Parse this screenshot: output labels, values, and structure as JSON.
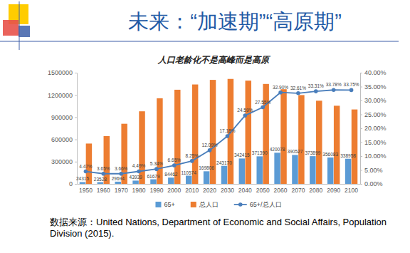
{
  "header": {
    "title": "未来：“加速期”“高原期”"
  },
  "chart_data": {
    "type": "bar",
    "title": "人口老龄化不是高峰而是高原",
    "categories": [
      "1950",
      "1960",
      "1970",
      "1980",
      "1990",
      "2000",
      "2010",
      "2020",
      "2030",
      "2040",
      "2050",
      "2060",
      "2070",
      "2080",
      "2090",
      "2100"
    ],
    "series": [
      {
        "name": "65+",
        "type": "bar",
        "color": "#5b9bd5",
        "data_labels": true,
        "values": [
          24315,
          23528,
          29694,
          43939,
          61679,
          84462,
          110574,
          169806,
          243170,
          342415,
          371390,
          420078,
          390527,
          373899,
          356083,
          338958
        ]
      },
      {
        "name": "总人口",
        "type": "bar",
        "color": "#ed7d31",
        "values": [
          544000,
          645000,
          811000,
          979000,
          1155000,
          1270000,
          1341000,
          1403000,
          1416000,
          1393000,
          1348000,
          1277000,
          1198000,
          1122000,
          1054000,
          1004000
        ]
      },
      {
        "name": "65+/总人口",
        "type": "line",
        "axis": "y2",
        "color": "#4a7ebb",
        "marker": "circle",
        "line_style": "solid",
        "data_labels": true,
        "values": [
          4.47,
          3.65,
          3.66,
          4.49,
          5.34,
          6.65,
          8.25,
          12.09,
          17.18,
          24.59,
          27.55,
          32.9,
          32.61,
          33.31,
          33.78,
          33.75
        ],
        "value_labels": [
          "4.47%",
          "3.65%",
          "3.66%",
          "4.49%",
          "5.34%",
          "6.65%",
          "8.25%",
          "12.09%",
          "17.18%",
          "24.59%",
          "27.55%",
          "32.90%",
          "32.61%",
          "33.31%",
          "33.78%",
          "33.75%"
        ]
      }
    ],
    "ylim": [
      0,
      1500000
    ],
    "yticks": [
      0,
      300000,
      600000,
      900000,
      1200000,
      1500000
    ],
    "y2lim": [
      0,
      40
    ],
    "y2ticks": [
      {
        "value": 0,
        "label": "0.00%"
      },
      {
        "value": 5,
        "label": "5.00%"
      },
      {
        "value": 10,
        "label": "10.00%"
      },
      {
        "value": 15,
        "label": "15.00%"
      },
      {
        "value": 20,
        "label": "20.00%"
      },
      {
        "value": 25,
        "label": "25.00%"
      },
      {
        "value": 30,
        "label": "30.00%"
      },
      {
        "value": 35,
        "label": "35.00%"
      },
      {
        "value": 40,
        "label": "40.00%"
      }
    ],
    "grid": false,
    "legend": "bottom"
  },
  "footer": {
    "source": "数据来源：United Nations, Department of Economic and Social Affairs, Population Division (2015)."
  }
}
